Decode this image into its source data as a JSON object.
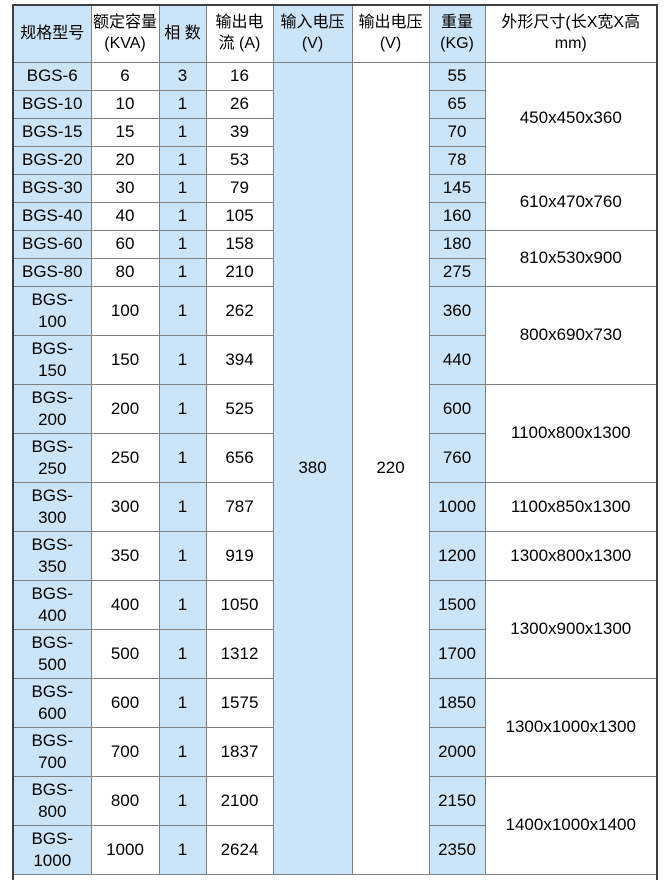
{
  "table": {
    "columns": [
      {
        "key": "model",
        "label": "规格型号"
      },
      {
        "key": "kva",
        "label": "额定容量\n(KVA)"
      },
      {
        "key": "phase",
        "label": "相 数"
      },
      {
        "key": "current",
        "label": "输出电\n流 (A)"
      },
      {
        "key": "input_voltage",
        "label": "输入电压\n(V)"
      },
      {
        "key": "output_voltage",
        "label": "输出电压\n(V)"
      },
      {
        "key": "weight",
        "label": "重量\n(KG)"
      },
      {
        "key": "dimensions",
        "label": "外形尺寸(长X宽X高\nmm)"
      }
    ],
    "input_voltage": "380",
    "output_voltage": "220",
    "rows": [
      {
        "model": "BGS-6",
        "kva": "6",
        "phase": "3",
        "current": "16",
        "weight": "55",
        "lines": 1
      },
      {
        "model": "BGS-10",
        "kva": "10",
        "phase": "1",
        "current": "26",
        "weight": "65",
        "lines": 1
      },
      {
        "model": "BGS-15",
        "kva": "15",
        "phase": "1",
        "current": "39",
        "weight": "70",
        "lines": 1
      },
      {
        "model": "BGS-20",
        "kva": "20",
        "phase": "1",
        "current": "53",
        "weight": "78",
        "lines": 1
      },
      {
        "model": "BGS-30",
        "kva": "30",
        "phase": "1",
        "current": "79",
        "weight": "145",
        "lines": 1
      },
      {
        "model": "BGS-40",
        "kva": "40",
        "phase": "1",
        "current": "105",
        "weight": "160",
        "lines": 1
      },
      {
        "model": "BGS-60",
        "kva": "60",
        "phase": "1",
        "current": "158",
        "weight": "180",
        "lines": 1
      },
      {
        "model": "BGS-80",
        "kva": "80",
        "phase": "1",
        "current": "210",
        "weight": "275",
        "lines": 1
      },
      {
        "model": "BGS-\n100",
        "kva": "100",
        "phase": "1",
        "current": "262",
        "weight": "360",
        "lines": 2
      },
      {
        "model": "BGS-\n150",
        "kva": "150",
        "phase": "1",
        "current": "394",
        "weight": "440",
        "lines": 2
      },
      {
        "model": "BGS-\n200",
        "kva": "200",
        "phase": "1",
        "current": "525",
        "weight": "600",
        "lines": 2
      },
      {
        "model": "BGS-\n250",
        "kva": "250",
        "phase": "1",
        "current": "656",
        "weight": "760",
        "lines": 2
      },
      {
        "model": "BGS-\n300",
        "kva": "300",
        "phase": "1",
        "current": "787",
        "weight": "1000",
        "lines": 2
      },
      {
        "model": "BGS-\n350",
        "kva": "350",
        "phase": "1",
        "current": "919",
        "weight": "1200",
        "lines": 2
      },
      {
        "model": "BGS-\n400",
        "kva": "400",
        "phase": "1",
        "current": "1050",
        "weight": "1500",
        "lines": 2
      },
      {
        "model": "BGS-\n500",
        "kva": "500",
        "phase": "1",
        "current": "1312",
        "weight": "1700",
        "lines": 2
      },
      {
        "model": "BGS-\n600",
        "kva": "600",
        "phase": "1",
        "current": "1575",
        "weight": "1850",
        "lines": 2
      },
      {
        "model": "BGS-\n700",
        "kva": "700",
        "phase": "1",
        "current": "1837",
        "weight": "2000",
        "lines": 2
      },
      {
        "model": "BGS-\n800",
        "kva": "800",
        "phase": "1",
        "current": "2100",
        "weight": "2150",
        "lines": 2
      },
      {
        "model": "BGS-\n1000",
        "kva": "1000",
        "phase": "1",
        "current": "2624",
        "weight": "2350",
        "lines": 2
      }
    ],
    "dimension_groups": [
      {
        "value": "450x450x360",
        "rowspan": 4
      },
      {
        "value": "610x470x760",
        "rowspan": 2
      },
      {
        "value": "810x530x900",
        "rowspan": 2
      },
      {
        "value": "800x690x730",
        "rowspan": 2
      },
      {
        "value": "1100x800x1300",
        "rowspan": 2
      },
      {
        "value": "1100x850x1300",
        "rowspan": 1
      },
      {
        "value": "1300x800x1300",
        "rowspan": 1
      },
      {
        "value": "1300x900x1300",
        "rowspan": 2
      },
      {
        "value": "1300x1000x1300",
        "rowspan": 2
      },
      {
        "value": "1400x1000x1400",
        "rowspan": 2
      }
    ],
    "colors": {
      "highlight": "#cce4f7",
      "inner_border": "#7f7f7f",
      "outer_border": "#3f3f3f",
      "text": "#000000"
    }
  }
}
